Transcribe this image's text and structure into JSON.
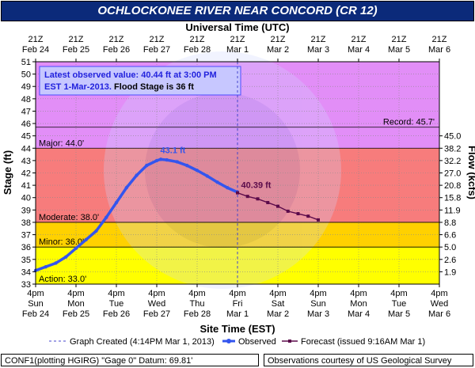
{
  "title": "OCHLOCKONEE RIVER NEAR CONCORD (CR 12)",
  "footer_left": "CONF1(plotting HGIRG) \"Gage 0\" Datum: 69.81'",
  "footer_right": "Observations courtesy of US Geological Survey",
  "info_box": {
    "line1": "Latest observed value: 40.44 ft at 3:00 PM",
    "line2a": "EST 1-Mar-2013.",
    "line2b": " Flood Stage is 36 ft"
  },
  "colors": {
    "record_zone": "#e28ef7",
    "major_zone": "#fe6b6b",
    "moderate_zone": "#f77c7c",
    "minor_zone": "#ffd100",
    "action_zone": "#ffff00",
    "observed": "#3355ee",
    "forecast": "#5b0a4a",
    "title_bg": "#0b2a7a"
  },
  "chart_data": {
    "type": "line",
    "xlabel_top": "Universal Time (UTC)",
    "xlabel_bottom": "Site Time (EST)",
    "ylabel_left": "Stage (ft)",
    "ylabel_right": "Flow (kcfs)",
    "ylim": [
      33,
      51
    ],
    "y_ticks": [
      33,
      34,
      35,
      36,
      37,
      38,
      39,
      40,
      41,
      42,
      43,
      44,
      45,
      46,
      47,
      48,
      49,
      50,
      51
    ],
    "top_ticks": [
      {
        "l1": "21Z",
        "l2": "Feb 24"
      },
      {
        "l1": "21Z",
        "l2": "Feb 25"
      },
      {
        "l1": "21Z",
        "l2": "Feb 26"
      },
      {
        "l1": "21Z",
        "l2": "Feb 27"
      },
      {
        "l1": "21Z",
        "l2": "Feb 28"
      },
      {
        "l1": "21Z",
        "l2": "Mar 1"
      },
      {
        "l1": "21Z",
        "l2": "Mar 2"
      },
      {
        "l1": "21Z",
        "l2": "Mar 3"
      },
      {
        "l1": "21Z",
        "l2": "Mar 4"
      },
      {
        "l1": "21Z",
        "l2": "Mar 5"
      },
      {
        "l1": "21Z",
        "l2": "Mar 6"
      }
    ],
    "bottom_ticks": [
      {
        "l1": "4pm",
        "l2": "Sun",
        "l3": "Feb 24"
      },
      {
        "l1": "4pm",
        "l2": "Mon",
        "l3": "Feb 25"
      },
      {
        "l1": "4pm",
        "l2": "Tue",
        "l3": "Feb 26"
      },
      {
        "l1": "4pm",
        "l2": "Wed",
        "l3": "Feb 27"
      },
      {
        "l1": "4pm",
        "l2": "Thu",
        "l3": "Feb 28"
      },
      {
        "l1": "4pm",
        "l2": "Fri",
        "l3": "Mar 1"
      },
      {
        "l1": "4pm",
        "l2": "Sat",
        "l3": "Mar 2"
      },
      {
        "l1": "4pm",
        "l2": "Sun",
        "l3": "Mar 3"
      },
      {
        "l1": "4pm",
        "l2": "Mon",
        "l3": "Mar 4"
      },
      {
        "l1": "4pm",
        "l2": "Tue",
        "l3": "Mar 5"
      },
      {
        "l1": "4pm",
        "l2": "Wed",
        "l3": "Mar 6"
      }
    ],
    "flow_ticks": [
      {
        "stage": 34,
        "label": "1.9"
      },
      {
        "stage": 35,
        "label": "2.6"
      },
      {
        "stage": 36,
        "label": "5.0"
      },
      {
        "stage": 37,
        "label": "6.6"
      },
      {
        "stage": 38,
        "label": "8.8"
      },
      {
        "stage": 39,
        "label": "11.9"
      },
      {
        "stage": 40,
        "label": "15.8"
      },
      {
        "stage": 41,
        "label": "20.8"
      },
      {
        "stage": 42,
        "label": "27.0"
      },
      {
        "stage": 43,
        "label": "32.2"
      },
      {
        "stage": 44,
        "label": "38.2"
      },
      {
        "stage": 45,
        "label": "45.0"
      }
    ],
    "thresholds": [
      {
        "name": "Record",
        "value": 45.7,
        "label": "Record: 45.7'"
      },
      {
        "name": "Major",
        "value": 44.0,
        "label": "Major: 44.0'"
      },
      {
        "name": "Moderate",
        "value": 38.0,
        "label": "Moderate: 38.0'"
      },
      {
        "name": "Minor",
        "value": 36.0,
        "label": "Minor: 36.0'"
      },
      {
        "name": "Action",
        "value": 33.0,
        "label": "Action: 33.0'"
      }
    ],
    "series": [
      {
        "name": "Observed",
        "x_day": [
          0.0,
          0.25,
          0.5,
          0.75,
          1.0,
          1.25,
          1.5,
          1.75,
          2.0,
          2.25,
          2.5,
          2.75,
          3.0,
          3.1,
          3.25,
          3.5,
          3.75,
          4.0,
          4.25,
          4.5,
          4.75,
          5.0
        ],
        "y": [
          34.1,
          34.4,
          34.7,
          35.2,
          35.9,
          36.6,
          37.3,
          38.4,
          39.6,
          40.8,
          41.8,
          42.6,
          43.0,
          43.1,
          43.05,
          42.9,
          42.6,
          42.2,
          41.75,
          41.25,
          40.8,
          40.44
        ]
      },
      {
        "name": "Forecast (issued 9:16AM Mar 1)",
        "x_day": [
          5.0,
          5.25,
          5.5,
          5.75,
          6.0,
          6.25,
          6.5,
          6.75,
          7.0
        ],
        "y": [
          40.39,
          40.1,
          39.9,
          39.6,
          39.3,
          38.9,
          38.7,
          38.5,
          38.2
        ]
      }
    ],
    "annotations": [
      {
        "text": "43.1 ft",
        "x_day": 3.05,
        "y": 43.1,
        "series": "Observed"
      },
      {
        "text": "40.39 ft",
        "x_day": 5.05,
        "y": 40.39,
        "series": "Forecast"
      }
    ],
    "graph_created_day": 5.0,
    "legend": [
      {
        "key": "graph-created",
        "label": "Graph Created (4:14PM Mar 1, 2013)"
      },
      {
        "key": "observed",
        "label": "Observed"
      },
      {
        "key": "forecast",
        "label": "Forecast (issued 9:16AM Mar 1)"
      }
    ],
    "grid": true,
    "legend_position": "bottom"
  }
}
